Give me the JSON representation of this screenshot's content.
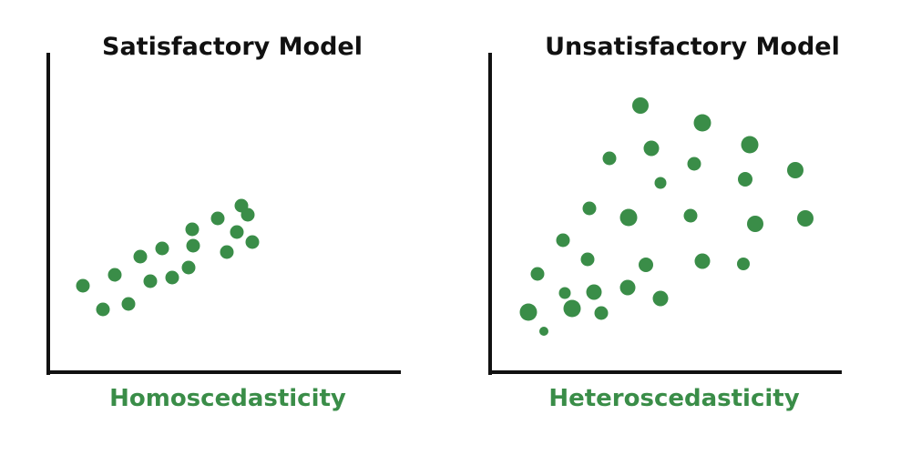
{
  "colors": {
    "point": "#3a8d48",
    "axis": "#111111",
    "caption": "#3a8d48",
    "title": "#111111"
  },
  "panels": [
    {
      "title": "Satisfactory Model",
      "caption": "Homoscedasticity"
    },
    {
      "title": "Unsatisfactory Model",
      "caption": "Heteroscedasticity"
    }
  ]
}
